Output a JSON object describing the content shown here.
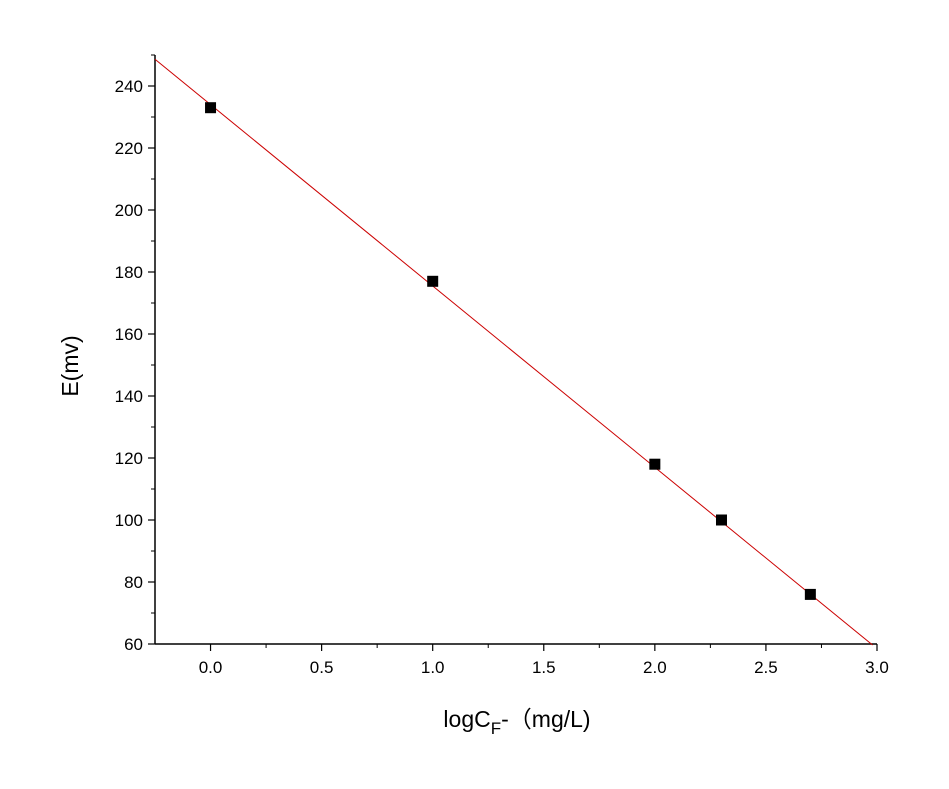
{
  "chart_data": {
    "type": "scatter",
    "title": "",
    "xlabel": {
      "main": "logC",
      "subscript": "F",
      "suffix": "-（mg/L)"
    },
    "ylabel": "E(mv)",
    "xlim": [
      -0.25,
      3.0
    ],
    "ylim": [
      60,
      250
    ],
    "x_ticks": [
      "0.0",
      "0.5",
      "1.0",
      "1.5",
      "2.0",
      "2.5",
      "3.0"
    ],
    "y_ticks": [
      "60",
      "80",
      "100",
      "120",
      "140",
      "160",
      "180",
      "200",
      "220",
      "240"
    ],
    "series": [
      {
        "marker": "square",
        "color": "#000000",
        "x": [
          0.0,
          1.0,
          2.0,
          2.3,
          2.7
        ],
        "y": [
          233,
          177,
          118,
          100,
          76
        ]
      }
    ],
    "fit_line": {
      "color": "#cc0000",
      "slope": -58.5,
      "intercept": 234,
      "x_range": [
        -0.25,
        2.98
      ]
    },
    "grid": false,
    "legend": "none"
  }
}
